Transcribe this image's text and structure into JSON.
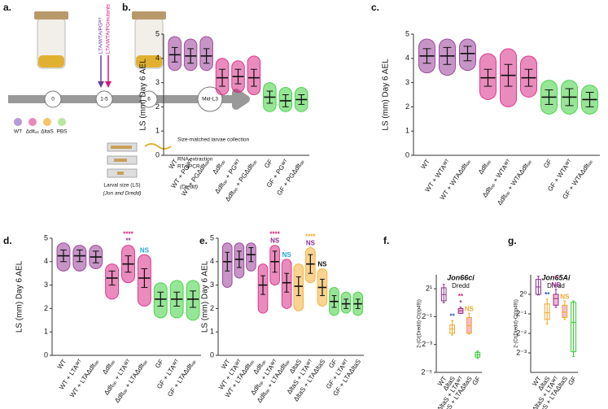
{
  "panel_a": {
    "letter": "a.",
    "arrow_labels": [
      "LTA/WTA/PGᵂᵀ",
      "LTA/WTA/PGmutants"
    ],
    "timeline": [
      "0",
      "1-5",
      "6",
      "Mid-L3"
    ],
    "strains": [
      "WT",
      "Δdltₒₚ",
      "ΔltaS",
      "PBS"
    ],
    "larval_size": "Larval size (LS)",
    "larval_size_note": "(Jon and Dredd)",
    "collection": "Size-matched larvae collection",
    "rna": "RNA extraction",
    "qpcr": "RT-qPCR",
    "gene": "(Dredd)"
  },
  "chart_data": [
    {
      "type": "dots",
      "panel": "b.",
      "ylabel": "LS (mm) Day 6 AEL",
      "ylim": [
        0,
        5
      ],
      "yticks": [
        0,
        1,
        2,
        3,
        4,
        5
      ],
      "categories": [
        "WT",
        "WT + PGᵂᵀ",
        "WT + PGΔdltₒₚ",
        "Δdltₒₚ",
        "Δdltₒₚ + PGᵂᵀ",
        "Δdltₒₚ + PGΔdltₒₚ",
        "GF",
        "GF + PGᵂᵀ",
        "GF + PGΔdltₒₚ"
      ],
      "values": [
        4.15,
        4.1,
        4.1,
        3.2,
        3.25,
        3.2,
        2.4,
        2.25,
        2.3
      ],
      "errors": [
        0.3,
        0.3,
        0.3,
        0.35,
        0.3,
        0.35,
        0.25,
        0.25,
        0.2
      ],
      "min": [
        3.5,
        3.5,
        3.5,
        2.5,
        2.6,
        2.5,
        1.8,
        1.8,
        1.8
      ],
      "max": [
        4.9,
        4.8,
        4.9,
        4.0,
        3.9,
        4.1,
        3.0,
        2.8,
        2.8
      ],
      "colors": [
        "#8e2c8e",
        "#8e2c8e",
        "#8e2c8e",
        "#d6187c",
        "#d6187c",
        "#d6187c",
        "#2fcc2f",
        "#2fcc2f",
        "#2fcc2f"
      ]
    },
    {
      "type": "dots",
      "panel": "c.",
      "ylabel": "LS (mm) Day 6 AEL",
      "ylim": [
        0,
        5
      ],
      "yticks": [
        0,
        1,
        2,
        3,
        4,
        5
      ],
      "categories": [
        "WT",
        "WT + WTAᵂᵀ",
        "WT + WTAΔdltₒₚ",
        "Δdltₒₚ",
        "Δdltₒₚ + WTAᵂᵀ",
        "Δdltₒₚ + WTAΔdltₒₚ",
        "GF",
        "GF + WTAᵂᵀ",
        "GF + WTAΔdltₒₚ"
      ],
      "values": [
        4.1,
        4.1,
        4.2,
        3.2,
        3.3,
        3.2,
        2.4,
        2.4,
        2.3
      ],
      "errors": [
        0.3,
        0.35,
        0.3,
        0.35,
        0.45,
        0.35,
        0.3,
        0.35,
        0.3
      ],
      "min": [
        3.4,
        3.3,
        3.5,
        2.3,
        2.0,
        2.4,
        1.7,
        1.7,
        1.7
      ],
      "max": [
        4.8,
        4.8,
        4.8,
        4.2,
        4.4,
        4.1,
        3.1,
        3.1,
        2.9
      ],
      "colors": [
        "#8e2c8e",
        "#8e2c8e",
        "#8e2c8e",
        "#d6187c",
        "#d6187c",
        "#d6187c",
        "#2fcc2f",
        "#2fcc2f",
        "#2fcc2f"
      ]
    },
    {
      "type": "dots",
      "panel": "d.",
      "ylabel": "LS (mm) Day 6 AEL",
      "ylim": [
        0,
        5
      ],
      "yticks": [
        0,
        1,
        2,
        3,
        4,
        5
      ],
      "categories": [
        "WT",
        "WT + LTAᵂᵀ",
        "WT + LTAΔdltₒₚ",
        "Δdltₒₚ",
        "Δdltₒₚ + LTAᵂᵀ",
        "Δdltₒₚ + LTAΔdltₒₚ",
        "GF",
        "GF + LTAᵂᵀ",
        "GF + LTAΔdltₒₚ"
      ],
      "values": [
        4.25,
        4.25,
        4.2,
        3.3,
        3.9,
        3.3,
        2.4,
        2.4,
        2.4
      ],
      "errors": [
        0.25,
        0.25,
        0.25,
        0.3,
        0.35,
        0.4,
        0.3,
        0.3,
        0.35
      ],
      "min": [
        3.6,
        3.6,
        3.7,
        2.4,
        3.1,
        2.1,
        1.6,
        1.6,
        1.5
      ],
      "max": [
        4.8,
        4.7,
        4.7,
        3.9,
        4.7,
        4.3,
        3.1,
        3.2,
        3.2
      ],
      "colors": [
        "#8e2c8e",
        "#8e2c8e",
        "#8e2c8e",
        "#d6187c",
        "#d6187c",
        "#d6187c",
        "#2fcc2f",
        "#2fcc2f",
        "#2fcc2f"
      ],
      "annotations": [
        {
          "category": "Δdltₒₚ + LTAᵂᵀ",
          "texts": [
            "****",
            "**"
          ],
          "colors": [
            "#d6187c",
            "#8e2c8e"
          ]
        },
        {
          "category": "Δdltₒₚ + LTAΔdltₒₚ",
          "texts": [
            "NS"
          ],
          "colors": [
            "#1fa8d8"
          ]
        }
      ]
    },
    {
      "type": "dots",
      "panel": "e.",
      "ylabel": "LS (mm) Day 6 AEL",
      "ylim": [
        0,
        5
      ],
      "yticks": [
        0,
        1,
        2,
        3,
        4,
        5
      ],
      "categories": [
        "WT",
        "WT + LTAᵂᵀ",
        "WT + LTAΔdltₒₚ",
        "Δdltₒₚ",
        "Δdltₒₚ + LTAᵂᵀ",
        "Δdltₒₚ + LTAΔdltₒₚ",
        "ΔltaS",
        "ΔltaS + LTAᵂᵀ",
        "ΔltaS + LTAΔltaS",
        "GF",
        "GF + LTAᵂᵀ",
        "GF + LTAΔltaS"
      ],
      "values": [
        4.0,
        4.1,
        4.3,
        3.0,
        4.0,
        3.1,
        2.95,
        3.9,
        2.9,
        2.3,
        2.2,
        2.2
      ],
      "errors": [
        0.4,
        0.35,
        0.3,
        0.4,
        0.45,
        0.4,
        0.4,
        0.4,
        0.35,
        0.25,
        0.2,
        0.2
      ],
      "min": [
        2.9,
        3.3,
        3.6,
        1.8,
        3.0,
        2.0,
        1.9,
        3.1,
        2.1,
        1.7,
        1.8,
        1.7
      ],
      "max": [
        4.8,
        4.8,
        4.8,
        3.9,
        4.7,
        4.1,
        3.9,
        4.6,
        3.7,
        2.9,
        2.7,
        2.7
      ],
      "colors": [
        "#8e2c8e",
        "#8e2c8e",
        "#8e2c8e",
        "#d6187c",
        "#d6187c",
        "#d6187c",
        "#f5a623",
        "#f5a623",
        "#f5a623",
        "#2fcc2f",
        "#2fcc2f",
        "#2fcc2f"
      ],
      "annotations": [
        {
          "category": "Δdltₒₚ + LTAᵂᵀ",
          "texts": [
            "****",
            "NS"
          ],
          "colors": [
            "#d6187c",
            "#8e2c8e"
          ]
        },
        {
          "category": "Δdltₒₚ + LTAΔdltₒₚ",
          "texts": [
            "NS"
          ],
          "colors": [
            "#1fa8d8"
          ]
        },
        {
          "category": "ΔltaS + LTAᵂᵀ",
          "texts": [
            "****",
            "NS"
          ],
          "colors": [
            "#f5a623",
            "#8e2c8e"
          ]
        },
        {
          "category": "ΔltaS + LTAΔltaS",
          "texts": [
            "NS"
          ],
          "colors": [
            "#111111"
          ]
        }
      ]
    },
    {
      "type": "box",
      "panel": "f.",
      "title": "Jon66ci",
      "subtitle": "Dredd",
      "ylabel": "2-(Ct(Dredd)-Ct(rp49))",
      "log_base": 2,
      "ylim": [
        0.03125,
        4
      ],
      "yticks": [
        {
          "value": 2,
          "label": "2¹"
        },
        {
          "value": 0.5,
          "label": "2⁻¹"
        },
        {
          "value": 0.125,
          "label": "2⁻³"
        },
        {
          "value": 0.03125,
          "label": "2⁻⁵"
        }
      ],
      "categories": [
        "WT",
        "ΔltaS",
        "ΔltaS + LTAᵂᵀ",
        "ΔltaS + LTAΔltaS",
        "GF"
      ],
      "min": [
        1.0,
        0.2,
        0.59,
        0.21,
        0.0625
      ],
      "q1": [
        1.1,
        0.22,
        0.59,
        0.22,
        0.067
      ],
      "median": [
        1.5,
        0.27,
        0.67,
        0.32,
        0.075
      ],
      "q3": [
        2.1,
        0.33,
        0.75,
        0.48,
        0.085
      ],
      "max": [
        2.5,
        0.41,
        0.8,
        0.59,
        0.09
      ],
      "colors": [
        "#8e2c8e",
        "#f5a623",
        "#8e2c8e",
        "#f5a623",
        "#2fcc2f"
      ],
      "fill_colors": [
        "none",
        "none",
        "#f7b7d6",
        "#f7b7d6",
        "none"
      ],
      "annotations": [
        {
          "category": "ΔltaS",
          "texts": [
            "**"
          ],
          "colors": [
            "#1f4fb8"
          ]
        },
        {
          "category": "ΔltaS + LTAᵂᵀ",
          "texts": [
            "**",
            "*"
          ],
          "colors": [
            "#d6187c",
            "#8e2c8e"
          ]
        },
        {
          "category": "ΔltaS + LTAΔltaS",
          "texts": [
            "NS"
          ],
          "colors": [
            "#f5a623"
          ]
        }
      ]
    },
    {
      "type": "box",
      "panel": "g.",
      "title": "Jon65Ai",
      "subtitle": "Dredd",
      "ylabel": "2-(Ct(Dredd)-Ct(rp49))",
      "log_base": 2,
      "ylim": [
        0.0625,
        2
      ],
      "yticks": [
        {
          "value": 1,
          "label": "2⁰"
        },
        {
          "value": 0.5,
          "label": "2⁻¹"
        },
        {
          "value": 0.25,
          "label": "2⁻²"
        },
        {
          "value": 0.125,
          "label": "2⁻³"
        }
      ],
      "categories": [
        "WT",
        "ΔltaS",
        "ΔltaS + LTAᵂᵀ",
        "ΔltaS + LTAΔltaS",
        "GF"
      ],
      "min": [
        0.98,
        0.35,
        0.63,
        0.41,
        0.11
      ],
      "q1": [
        1.0,
        0.41,
        0.68,
        0.44,
        0.13
      ],
      "median": [
        1.3,
        0.52,
        0.86,
        0.53,
        0.37
      ],
      "q3": [
        1.7,
        0.71,
        1.0,
        0.68,
        0.75
      ],
      "max": [
        1.9,
        0.84,
        1.2,
        0.79,
        0.79
      ],
      "colors": [
        "#8e2c8e",
        "#f5a623",
        "#8e2c8e",
        "#f5a623",
        "#2fcc2f"
      ],
      "fill_colors": [
        "none",
        "none",
        "#f7b7d6",
        "#f7b7d6",
        "none"
      ],
      "annotations": [
        {
          "category": "ΔltaS",
          "texts": [
            "**"
          ],
          "colors": [
            "#1f4fb8"
          ]
        },
        {
          "category": "ΔltaS + LTAᵂᵀ",
          "texts": [
            "*",
            "NS"
          ],
          "colors": [
            "#d6187c",
            "#8e2c8e"
          ]
        },
        {
          "category": "ΔltaS + LTAΔltaS",
          "texts": [
            "NS"
          ],
          "colors": [
            "#f5a623"
          ]
        }
      ]
    }
  ]
}
